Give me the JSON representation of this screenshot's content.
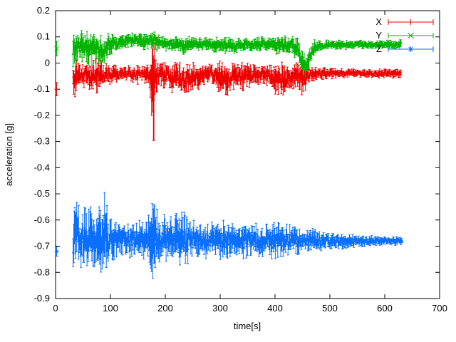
{
  "chart": {
    "background": "#ffffff",
    "border_color": "#000000",
    "text_color": "#000000"
  },
  "chart_data": {
    "type": "line",
    "title": "",
    "xlabel": "time[s]",
    "ylabel": "acceleration [g]",
    "xlim": [
      0,
      700
    ],
    "ylim": [
      -0.9,
      0.2
    ],
    "xticks": [
      0,
      100,
      200,
      300,
      400,
      500,
      600,
      700
    ],
    "yticks": [
      0.2,
      0.1,
      0,
      -0.1,
      -0.2,
      -0.3,
      -0.4,
      -0.5,
      -0.6,
      -0.7,
      -0.8,
      -0.9
    ],
    "grid": false,
    "legend": {
      "position": "top-right-inside",
      "sample_style": "errorbar"
    },
    "band_format": "[t_seconds, mean_g, spread_g]",
    "series": [
      {
        "name": "X",
        "color": "#ee0000",
        "marker": "plus",
        "style": "errorbars",
        "start_point": {
          "t": 2,
          "value": -0.1,
          "err": 0.025
        },
        "band": [
          [
            32,
            -0.08,
            0.05
          ],
          [
            36,
            -0.06,
            0.05
          ],
          [
            42,
            -0.05,
            0.04
          ],
          [
            55,
            -0.045,
            0.035
          ],
          [
            70,
            -0.05,
            0.045
          ],
          [
            78,
            -0.055,
            0.06
          ],
          [
            85,
            -0.05,
            0.035
          ],
          [
            100,
            -0.045,
            0.03
          ],
          [
            115,
            -0.04,
            0.02
          ],
          [
            130,
            -0.04,
            0.02
          ],
          [
            148,
            -0.042,
            0.028
          ],
          [
            160,
            -0.04,
            0.022
          ],
          [
            172,
            -0.05,
            0.04
          ],
          [
            179,
            -0.07,
            0.18
          ],
          [
            182,
            -0.05,
            0.05
          ],
          [
            195,
            -0.045,
            0.035
          ],
          [
            210,
            -0.05,
            0.04
          ],
          [
            225,
            -0.065,
            0.05
          ],
          [
            238,
            -0.06,
            0.05
          ],
          [
            252,
            -0.055,
            0.04
          ],
          [
            268,
            -0.045,
            0.03
          ],
          [
            285,
            -0.04,
            0.025
          ],
          [
            300,
            -0.055,
            0.045
          ],
          [
            312,
            -0.07,
            0.05
          ],
          [
            322,
            -0.05,
            0.04
          ],
          [
            335,
            -0.055,
            0.045
          ],
          [
            348,
            -0.05,
            0.04
          ],
          [
            362,
            -0.045,
            0.03
          ],
          [
            378,
            -0.04,
            0.025
          ],
          [
            392,
            -0.05,
            0.035
          ],
          [
            405,
            -0.07,
            0.055
          ],
          [
            418,
            -0.065,
            0.05
          ],
          [
            430,
            -0.05,
            0.03
          ],
          [
            442,
            -0.05,
            0.045
          ],
          [
            450,
            -0.055,
            0.05
          ],
          [
            462,
            -0.045,
            0.025
          ],
          [
            475,
            -0.04,
            0.018
          ],
          [
            500,
            -0.04,
            0.015
          ],
          [
            530,
            -0.04,
            0.013
          ],
          [
            560,
            -0.039,
            0.012
          ],
          [
            590,
            -0.04,
            0.012
          ],
          [
            615,
            -0.04,
            0.013
          ],
          [
            630,
            -0.042,
            0.015
          ]
        ]
      },
      {
        "name": "Y",
        "color": "#00b400",
        "marker": "cross",
        "style": "errorbars",
        "start_point": {
          "t": 2,
          "value": 0.055,
          "err": 0.028
        },
        "band": [
          [
            32,
            0.05,
            0.055
          ],
          [
            40,
            0.065,
            0.045
          ],
          [
            50,
            0.06,
            0.05
          ],
          [
            62,
            0.055,
            0.05
          ],
          [
            75,
            0.05,
            0.045
          ],
          [
            88,
            0.055,
            0.05
          ],
          [
            95,
            0.07,
            0.035
          ],
          [
            105,
            0.075,
            0.025
          ],
          [
            120,
            0.08,
            0.022
          ],
          [
            135,
            0.088,
            0.02
          ],
          [
            150,
            0.085,
            0.022
          ],
          [
            165,
            0.08,
            0.025
          ],
          [
            178,
            0.088,
            0.032
          ],
          [
            190,
            0.078,
            0.022
          ],
          [
            205,
            0.072,
            0.02
          ],
          [
            220,
            0.07,
            0.022
          ],
          [
            235,
            0.068,
            0.025
          ],
          [
            250,
            0.072,
            0.02
          ],
          [
            270,
            0.075,
            0.018
          ],
          [
            290,
            0.07,
            0.02
          ],
          [
            310,
            0.068,
            0.022
          ],
          [
            325,
            0.062,
            0.025
          ],
          [
            340,
            0.068,
            0.02
          ],
          [
            360,
            0.07,
            0.018
          ],
          [
            380,
            0.074,
            0.02
          ],
          [
            395,
            0.072,
            0.022
          ],
          [
            410,
            0.068,
            0.028
          ],
          [
            425,
            0.072,
            0.022
          ],
          [
            438,
            0.06,
            0.035
          ],
          [
            448,
            0.02,
            0.04
          ],
          [
            456,
            -0.015,
            0.03
          ],
          [
            463,
            0.025,
            0.03
          ],
          [
            472,
            0.06,
            0.02
          ],
          [
            485,
            0.068,
            0.015
          ],
          [
            510,
            0.07,
            0.013
          ],
          [
            540,
            0.068,
            0.012
          ],
          [
            570,
            0.07,
            0.012
          ],
          [
            600,
            0.07,
            0.012
          ],
          [
            630,
            0.07,
            0.014
          ]
        ]
      },
      {
        "name": "Z",
        "color": "#0a6eff",
        "marker": "asterisk",
        "style": "errorbars",
        "start_point": {
          "t": 2,
          "value": -0.72,
          "err": 0.018
        },
        "band": [
          [
            32,
            -0.68,
            0.1
          ],
          [
            42,
            -0.67,
            0.105
          ],
          [
            52,
            -0.675,
            0.095
          ],
          [
            62,
            -0.68,
            0.09
          ],
          [
            72,
            -0.67,
            0.09
          ],
          [
            82,
            -0.675,
            0.095
          ],
          [
            90,
            -0.68,
            0.13
          ],
          [
            96,
            -0.675,
            0.08
          ],
          [
            110,
            -0.678,
            0.06
          ],
          [
            125,
            -0.675,
            0.05
          ],
          [
            140,
            -0.673,
            0.05
          ],
          [
            155,
            -0.678,
            0.055
          ],
          [
            168,
            -0.675,
            0.05
          ],
          [
            178,
            -0.68,
            0.135
          ],
          [
            186,
            -0.676,
            0.07
          ],
          [
            200,
            -0.674,
            0.065
          ],
          [
            215,
            -0.678,
            0.07
          ],
          [
            232,
            -0.678,
            0.09
          ],
          [
            245,
            -0.675,
            0.06
          ],
          [
            260,
            -0.676,
            0.05
          ],
          [
            275,
            -0.678,
            0.05
          ],
          [
            290,
            -0.675,
            0.048
          ],
          [
            305,
            -0.678,
            0.055
          ],
          [
            318,
            -0.676,
            0.05
          ],
          [
            332,
            -0.677,
            0.048
          ],
          [
            348,
            -0.678,
            0.05
          ],
          [
            362,
            -0.676,
            0.045
          ],
          [
            378,
            -0.677,
            0.048
          ],
          [
            392,
            -0.678,
            0.05
          ],
          [
            408,
            -0.676,
            0.048
          ],
          [
            422,
            -0.678,
            0.042
          ],
          [
            438,
            -0.677,
            0.04
          ],
          [
            455,
            -0.678,
            0.036
          ],
          [
            470,
            -0.678,
            0.032
          ],
          [
            490,
            -0.679,
            0.028
          ],
          [
            510,
            -0.679,
            0.024
          ],
          [
            530,
            -0.68,
            0.02
          ],
          [
            555,
            -0.68,
            0.017
          ],
          [
            580,
            -0.68,
            0.014
          ],
          [
            605,
            -0.68,
            0.012
          ],
          [
            632,
            -0.68,
            0.011
          ]
        ]
      }
    ]
  }
}
